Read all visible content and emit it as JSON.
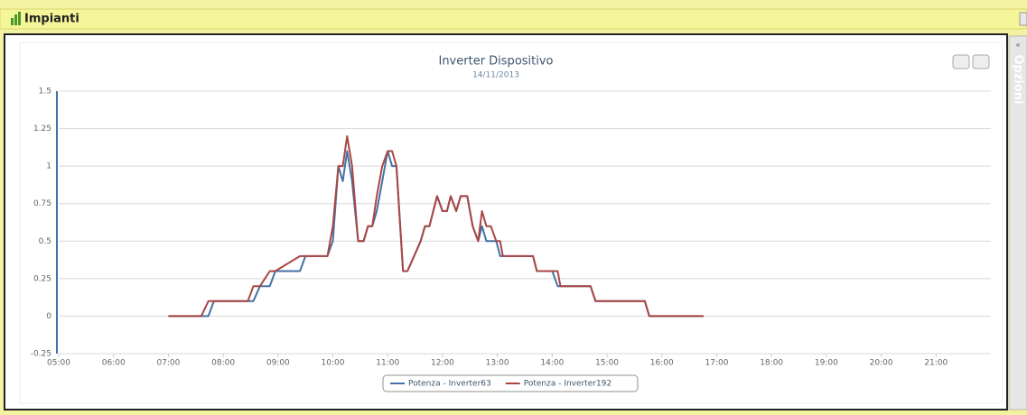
{
  "header": {
    "title": "Impianti"
  },
  "side": {
    "label": "Opzioni"
  },
  "chart_data": {
    "type": "line",
    "title": "Inverter Dispositivo",
    "subtitle": "14/11/2013",
    "x": [
      7.0,
      7.6,
      7.73,
      7.83,
      8.45,
      8.55,
      8.67,
      8.85,
      8.95,
      9.4,
      9.5,
      9.9,
      10.0,
      10.1,
      10.18,
      10.26,
      10.35,
      10.46,
      10.56,
      10.64,
      10.72,
      10.8,
      10.9,
      11.0,
      11.08,
      11.16,
      11.28,
      11.36,
      11.6,
      11.68,
      11.76,
      11.9,
      12.0,
      12.08,
      12.15,
      12.25,
      12.33,
      12.45,
      12.55,
      12.65,
      12.72,
      12.8,
      12.88,
      12.98,
      13.05,
      13.1,
      13.65,
      13.72,
      14.0,
      14.1,
      14.15,
      14.7,
      14.79,
      15.69,
      15.77,
      16.76
    ],
    "series": [
      {
        "name": "Potenza - Inverter63",
        "color": "#4572a7",
        "values": [
          0,
          0,
          0,
          0.1,
          0.1,
          0.1,
          0.2,
          0.2,
          0.3,
          0.3,
          0.4,
          0.4,
          0.5,
          1.0,
          0.9,
          1.1,
          0.9,
          0.5,
          0.5,
          0.6,
          0.6,
          0.7,
          0.9,
          1.1,
          1.0,
          1.0,
          0.3,
          0.3,
          0.5,
          0.6,
          0.6,
          0.8,
          0.7,
          0.7,
          0.8,
          0.7,
          0.8,
          0.8,
          0.6,
          0.5,
          0.6,
          0.5,
          0.5,
          0.5,
          0.4,
          0.4,
          0.4,
          0.3,
          0.3,
          0.2,
          0.2,
          0.2,
          0.1,
          0.1,
          0,
          0
        ]
      },
      {
        "name": "Potenza - Inverter192",
        "color": "#aa4643",
        "values": [
          0,
          0,
          0.1,
          0.1,
          0.1,
          0.2,
          0.2,
          0.3,
          0.3,
          0.4,
          0.4,
          0.4,
          0.6,
          1.0,
          1.0,
          1.2,
          1.0,
          0.5,
          0.5,
          0.6,
          0.6,
          0.8,
          1.0,
          1.1,
          1.1,
          1.0,
          0.3,
          0.3,
          0.5,
          0.6,
          0.6,
          0.8,
          0.7,
          0.7,
          0.8,
          0.7,
          0.8,
          0.8,
          0.6,
          0.5,
          0.7,
          0.6,
          0.6,
          0.5,
          0.5,
          0.4,
          0.4,
          0.3,
          0.3,
          0.3,
          0.2,
          0.2,
          0.1,
          0.1,
          0,
          0
        ]
      }
    ],
    "xlim": [
      5,
      22
    ],
    "xticks": [
      {
        "value": 5,
        "label": "05:00"
      },
      {
        "value": 6,
        "label": "06:00"
      },
      {
        "value": 7,
        "label": "07:00"
      },
      {
        "value": 8,
        "label": "08:00"
      },
      {
        "value": 9,
        "label": "09:00"
      },
      {
        "value": 10,
        "label": "10:00"
      },
      {
        "value": 11,
        "label": "11:00"
      },
      {
        "value": 12,
        "label": "12:00"
      },
      {
        "value": 13,
        "label": "13:00"
      },
      {
        "value": 14,
        "label": "14:00"
      },
      {
        "value": 15,
        "label": "15:00"
      },
      {
        "value": 16,
        "label": "16:00"
      },
      {
        "value": 17,
        "label": "17:00"
      },
      {
        "value": 18,
        "label": "18:00"
      },
      {
        "value": 19,
        "label": "19:00"
      },
      {
        "value": 20,
        "label": "20:00"
      },
      {
        "value": 21,
        "label": "21:00"
      }
    ],
    "ylim": [
      -0.25,
      1.5
    ],
    "yticks": [
      -0.25,
      0,
      0.25,
      0.5,
      0.75,
      1,
      1.25,
      1.5
    ],
    "grid": true,
    "legend": "bottom"
  }
}
